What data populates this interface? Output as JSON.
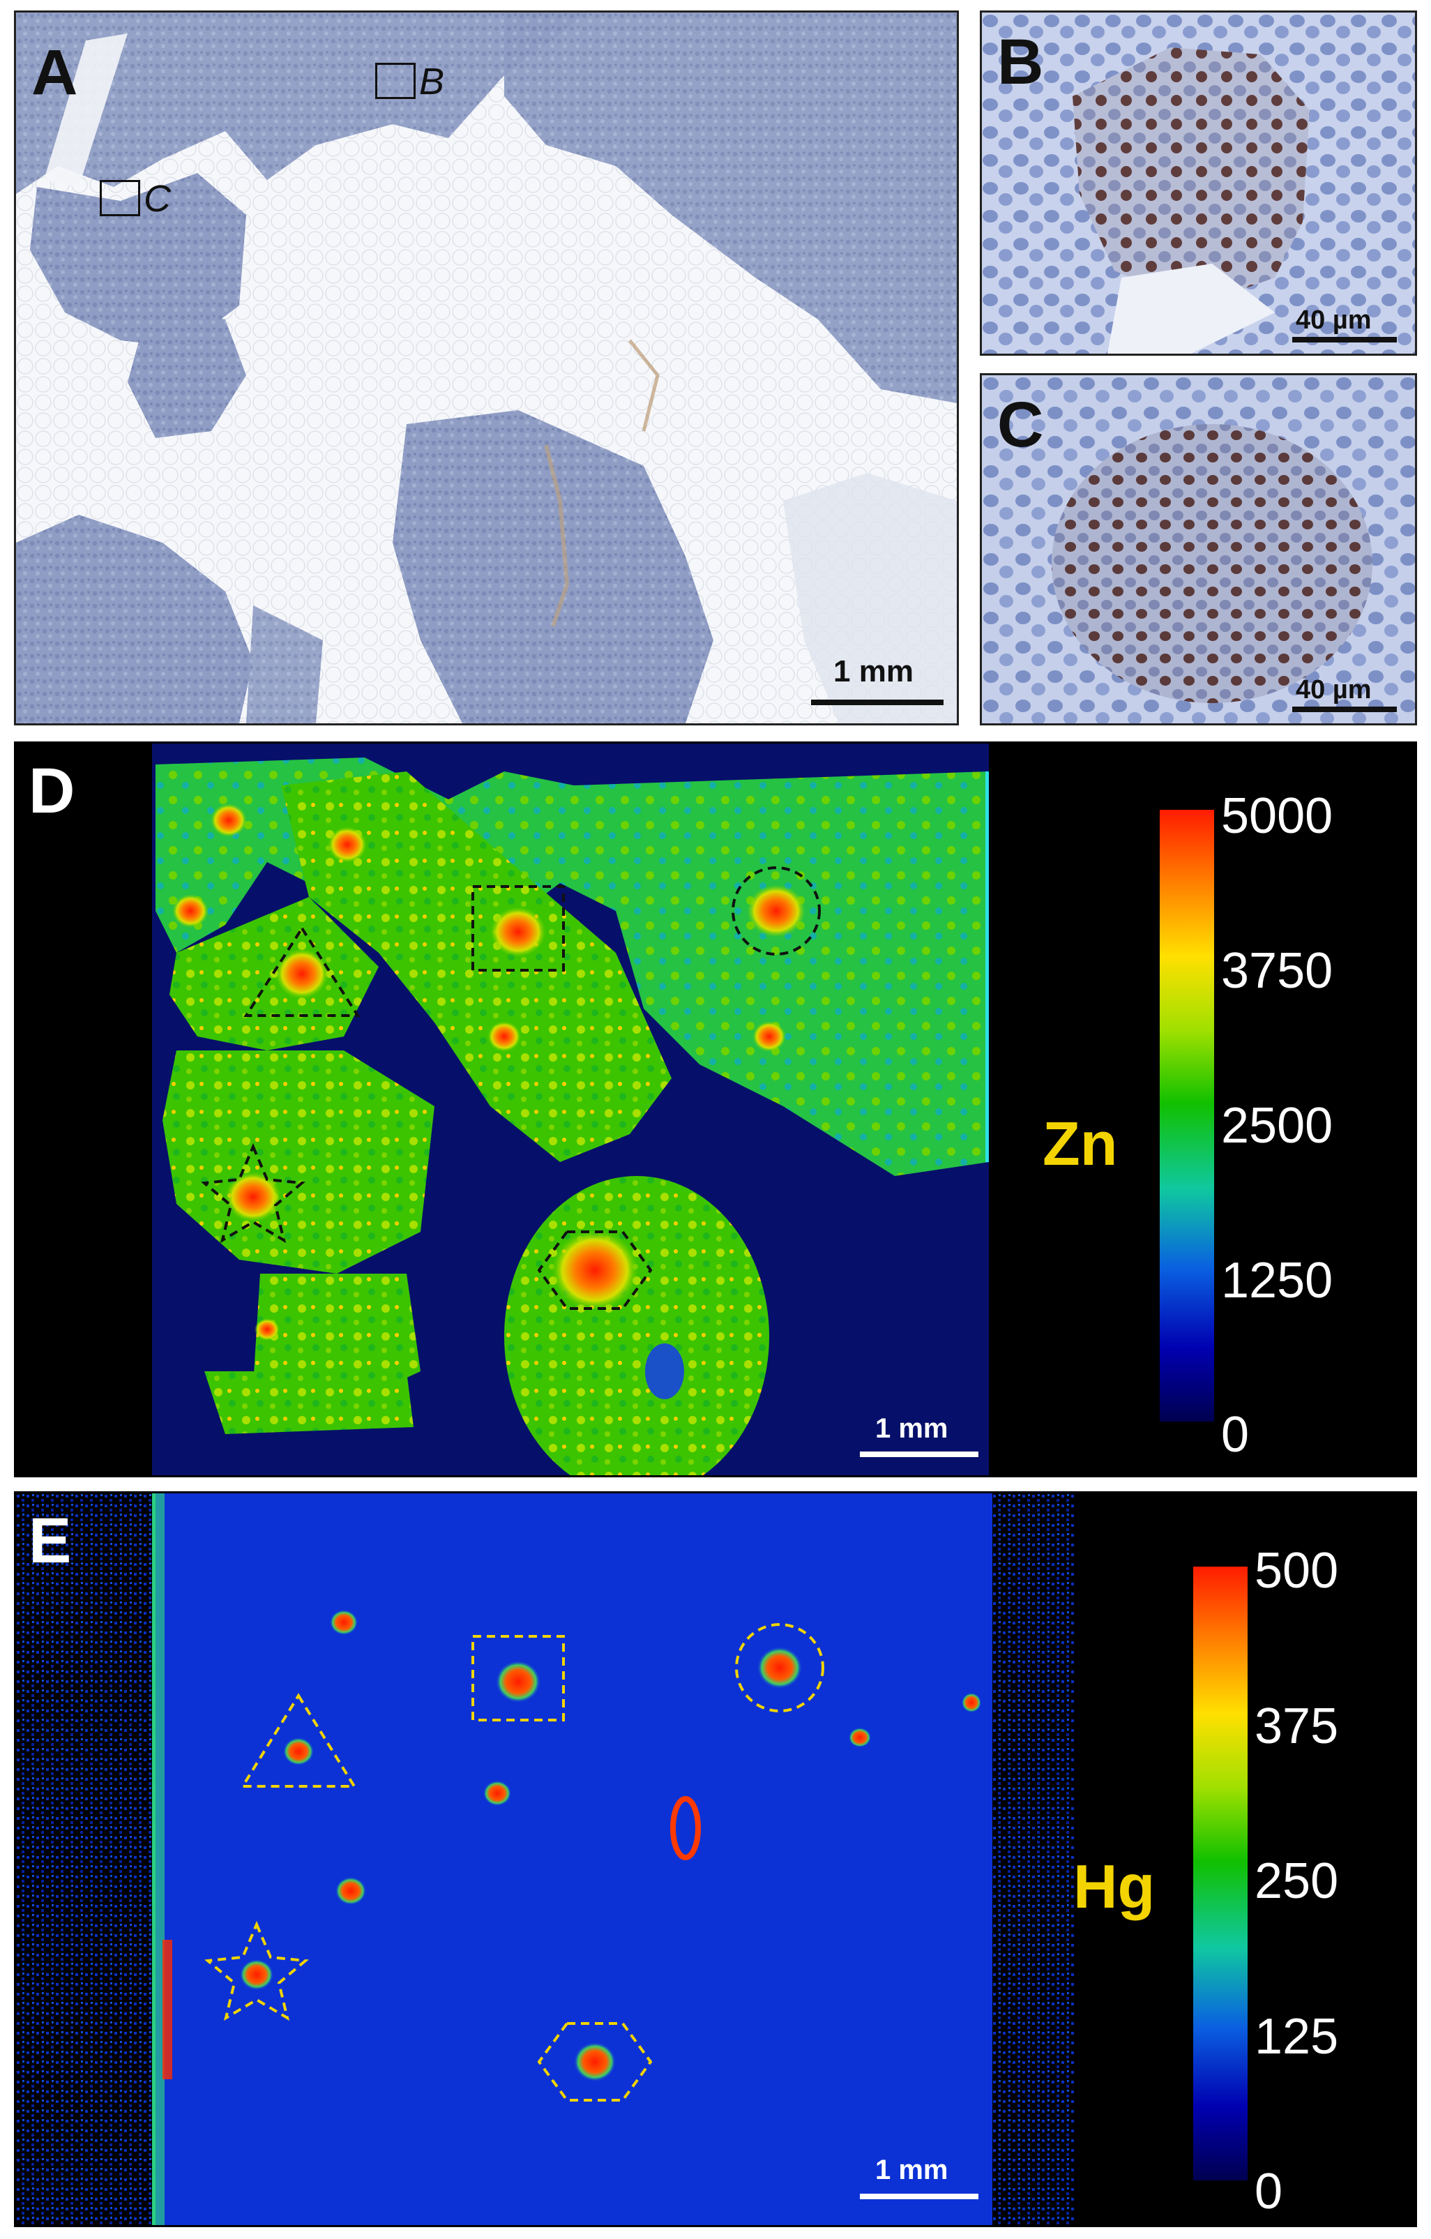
{
  "panels": {
    "A": {
      "letter": "A",
      "scale_label": "1 mm",
      "box_labels": [
        "B",
        "C"
      ]
    },
    "B": {
      "letter": "B",
      "scale_label": "40 µm"
    },
    "C": {
      "letter": "C",
      "scale_label": "40 µm"
    },
    "D": {
      "letter": "D",
      "element": "Zn",
      "scale_label": "1 mm",
      "colorbar_ticks": [
        "5000",
        "3750",
        "2500",
        "1250",
        "0"
      ],
      "colorbar_range": [
        0,
        5000
      ]
    },
    "E": {
      "letter": "E",
      "element": "Hg",
      "scale_label": "1 mm",
      "colorbar_ticks": [
        "500",
        "375",
        "250",
        "125",
        "0"
      ],
      "colorbar_range": [
        0,
        500
      ]
    }
  },
  "colors": {
    "tissue_stain": "#8d9cc4",
    "fat_background": "#f4f5f8",
    "islet_brown": "#6a3f2e",
    "colormap_low": "#000050",
    "colormap_mid": "#11c000",
    "colormap_high": "#ff1c00",
    "element_label": "#f3d400",
    "roi_outline_D": "#111111",
    "roi_outline_E": "#f3d400"
  }
}
